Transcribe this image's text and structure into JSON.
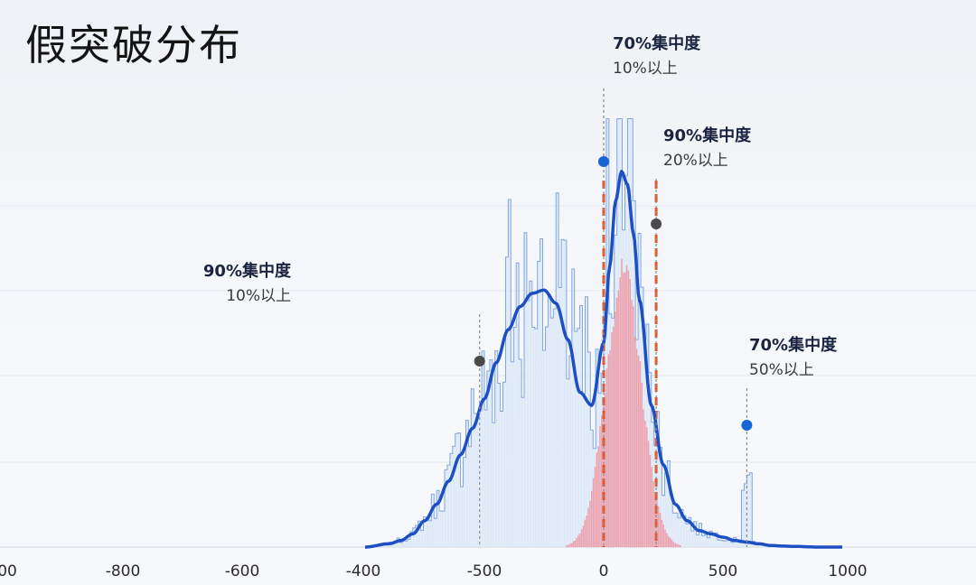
{
  "chart_data": {
    "type": "histogram",
    "title": "假突破分布",
    "x_ticks": [
      "00",
      "-800",
      "-600",
      "-400",
      "-500",
      "0",
      "500",
      "1000"
    ],
    "density_curve": {
      "color": "#1d4fc4",
      "x": [
        -1000,
        -900,
        -850,
        -800,
        -750,
        -700,
        -650,
        -600,
        -550,
        -500,
        -450,
        -400,
        -350,
        -300,
        -250,
        -200,
        -150,
        -100,
        -50,
        0,
        25,
        50,
        75,
        100,
        125,
        150,
        200,
        250,
        300,
        350,
        400,
        450,
        500,
        550,
        600,
        650,
        700,
        750,
        800,
        900,
        1000
      ],
      "y": [
        0,
        0.01,
        0.02,
        0.04,
        0.08,
        0.13,
        0.2,
        0.28,
        0.36,
        0.45,
        0.56,
        0.66,
        0.73,
        0.77,
        0.78,
        0.74,
        0.63,
        0.47,
        0.43,
        0.62,
        0.85,
        1.05,
        1.14,
        1.1,
        0.95,
        0.75,
        0.43,
        0.25,
        0.13,
        0.08,
        0.05,
        0.04,
        0.03,
        0.02,
        0.015,
        0.01,
        0.005,
        0.003,
        0.002,
        0,
        0
      ]
    },
    "background_histogram": {
      "color": "#5d8fd4",
      "bins": 180,
      "shape": "bimodal, follows density curve with high noise; spike near +600"
    },
    "core_histogram": {
      "color": "#ec8a94",
      "center": 80,
      "spread": 75,
      "peak_relative": 0.83
    },
    "threshold_lines": [
      {
        "x": 0,
        "color": "#e5572b"
      },
      {
        "x": 220,
        "color": "#e5572b"
      }
    ],
    "annotations": [
      {
        "title": "90%集中度",
        "subtitle": "10%以上",
        "x": -520,
        "dot_color": "#4a4a4a"
      },
      {
        "title": "70%集中度",
        "subtitle": "10%以上",
        "x": 0,
        "dot_color": "#1565d8"
      },
      {
        "title": "90%集中度",
        "subtitle": "20%以上",
        "x": 220,
        "dot_color": "#4a4a4a"
      },
      {
        "title": "70%集中度",
        "subtitle": "50%以上",
        "x": 600,
        "dot_color": "#1565d8"
      }
    ],
    "grid": true,
    "legend": "none"
  }
}
